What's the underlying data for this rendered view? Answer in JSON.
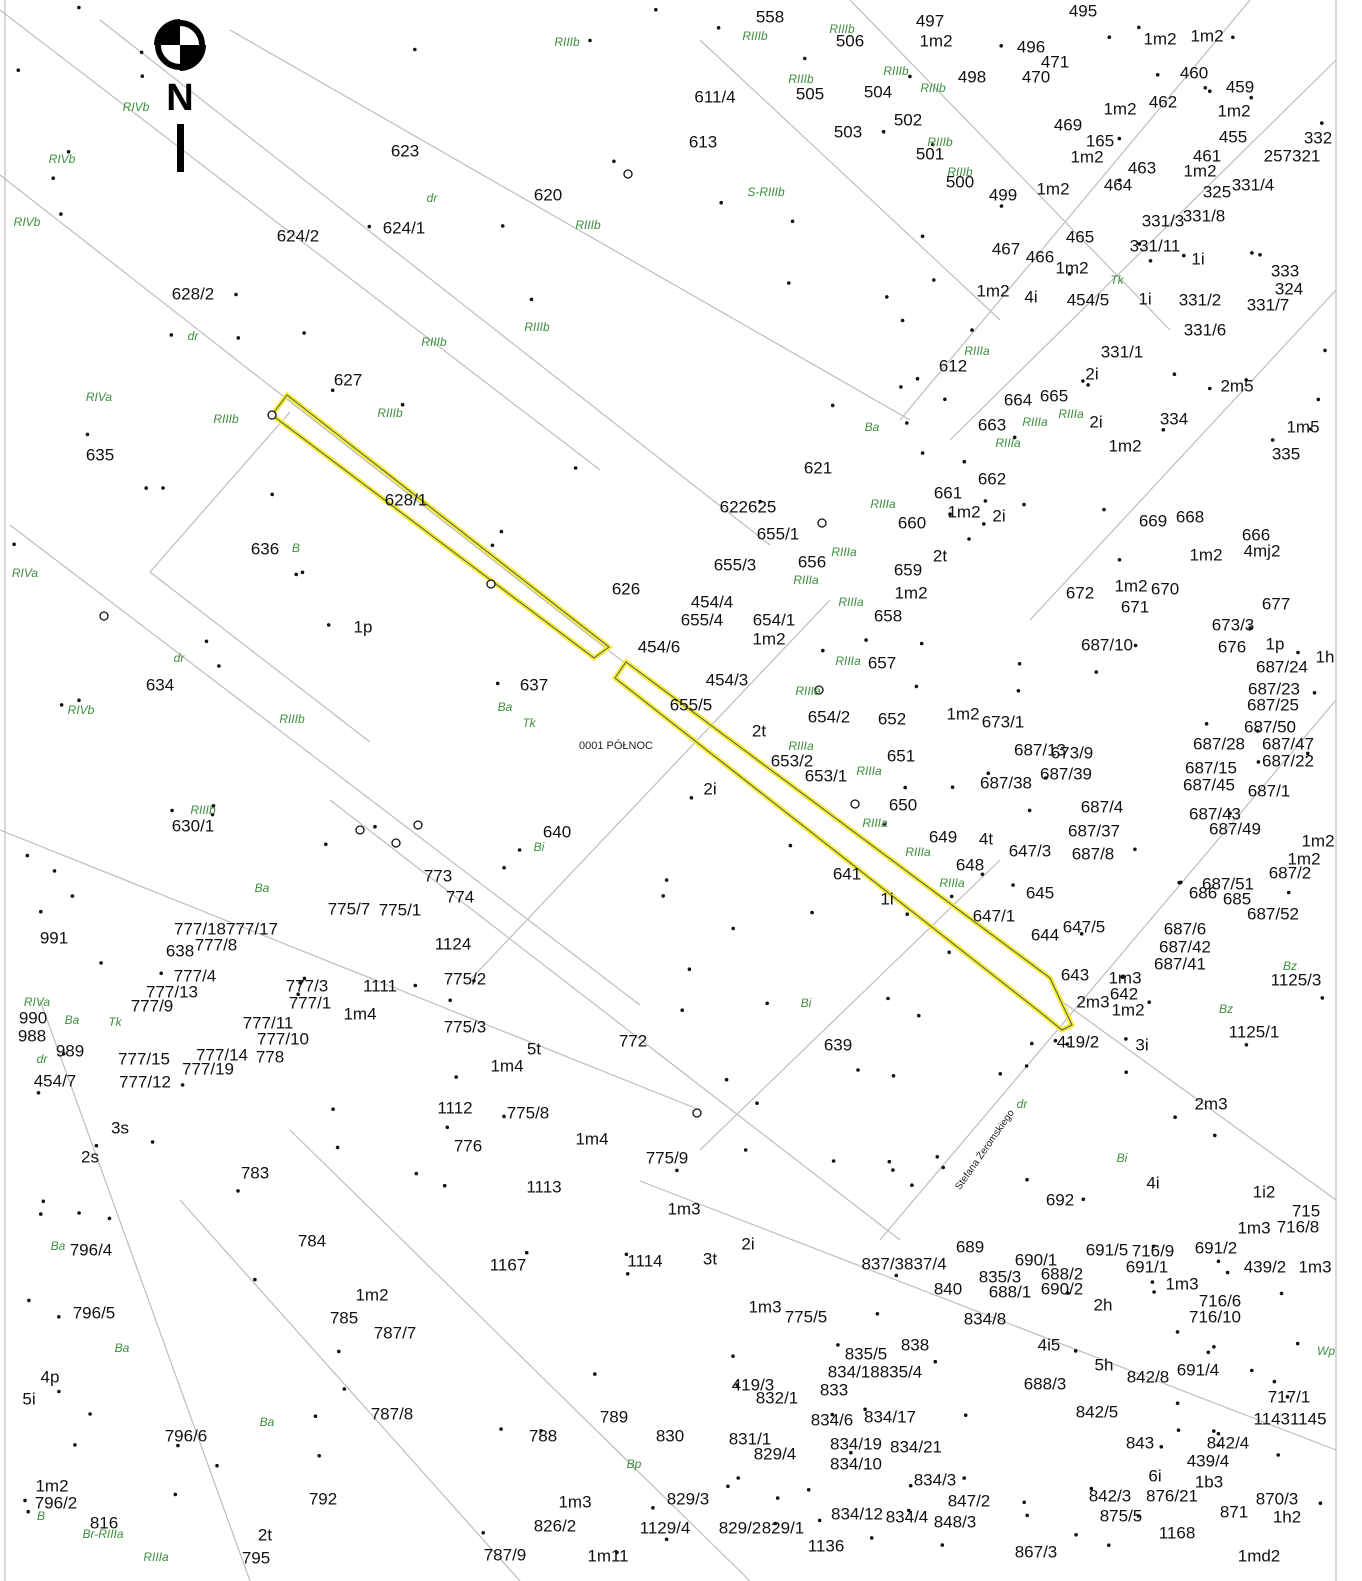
{
  "north": "N",
  "precinct": "0001 PÓŁNOC",
  "street": "Stefana Żeromskiego",
  "parcel_numbers": [
    "558",
    "506",
    "497",
    "1m2",
    "495",
    "496",
    "471",
    "1m2",
    "1m2",
    "611/4",
    "505",
    "504",
    "498",
    "470",
    "460",
    "459",
    "613",
    "503",
    "502",
    "501",
    "469",
    "165",
    "1m2",
    "462",
    "1m2",
    "1m2",
    "455",
    "332",
    "257321",
    "461",
    "1m2",
    "623",
    "620",
    "500",
    "499",
    "1m2",
    "464",
    "463",
    "325",
    "331/4",
    "624/2",
    "624/1",
    "331/8",
    "331/3",
    "331/11",
    "467",
    "466",
    "465",
    "1m2",
    "1i",
    "333",
    "324",
    "628/2",
    "1m2",
    "4i",
    "454/5",
    "1i",
    "331/2",
    "331/7",
    "331/6",
    "331/1",
    "612",
    "2i",
    "2m5",
    "627",
    "664",
    "665",
    "334",
    "635",
    "663",
    "2i",
    "1m2",
    "1m5",
    "335",
    "628/1",
    "621",
    "662",
    "661",
    "1m2",
    "2i",
    "622625",
    "655/1",
    "660",
    "669",
    "668",
    "666",
    "4mj2",
    "1m2",
    "636",
    "655/3",
    "656",
    "659",
    "2t",
    "626",
    "1m2",
    "672",
    "1m2",
    "670",
    "671",
    "677",
    "454/4",
    "655/4",
    "654/1",
    "1m2",
    "658",
    "1p",
    "673/3",
    "676",
    "1p",
    "454/6",
    "657",
    "687/10",
    "1h",
    "687/24",
    "687/23",
    "687/25",
    "634",
    "637",
    "454/3",
    "655/5",
    "654/2",
    "652",
    "1m2",
    "673/1",
    "687/50",
    "687/28",
    "687/47",
    "687/22",
    "2t",
    "653/2",
    "651",
    "687/13",
    "673/9",
    "687/15",
    "687/45",
    "687/1",
    "653/1",
    "687/38",
    "687/39",
    "2i",
    "650",
    "687/4",
    "687/43",
    "687/49",
    "630/1",
    "640",
    "649",
    "4t",
    "687/37",
    "1m2",
    "647/3",
    "687/8",
    "1m2",
    "687/2",
    "648",
    "641",
    "687/51",
    "686",
    "685",
    "1i",
    "647/1",
    "687/52",
    "645",
    "644",
    "647/5",
    "687/6",
    "687/42",
    "687/41",
    "991",
    "777/18777/17",
    "638",
    "777/8",
    "775/7",
    "775/1",
    "773",
    "774",
    "643",
    "1m3",
    "642",
    "1m2",
    "2m3",
    "1125/3",
    "1125/1",
    "990",
    "988",
    "989",
    "454/7",
    "639",
    "419/2",
    "3i",
    "772",
    "777/15",
    "777/12",
    "777/4",
    "777/13",
    "777/9",
    "777/3",
    "777/1",
    "777/11",
    "777/10",
    "778",
    "777/14",
    "777/19",
    "1m4",
    "1111",
    "775/2",
    "775/3",
    "1124",
    "5t",
    "1m4",
    "3s",
    "2s",
    "1112",
    "775/8",
    "2m3",
    "1m4",
    "775/9",
    "776",
    "783",
    "1113",
    "692",
    "4i",
    "1i2",
    "715",
    "1m3",
    "716/8",
    "1m3",
    "3t",
    "2i",
    "1114",
    "1167",
    "796/4",
    "784",
    "689",
    "690/1",
    "691/5",
    "716/9",
    "691/2",
    "1m2",
    "796/5",
    "785",
    "787/7",
    "775/5",
    "1m3",
    "2h",
    "1m3",
    "439/2",
    "1m3",
    "4p",
    "5i",
    "796/6",
    "787/8",
    "789",
    "830",
    "788",
    "5h",
    "4i5",
    "842/8",
    "717/1",
    "11431145",
    "1m2",
    "796/2",
    "816",
    "792",
    "829/3",
    "1129/4",
    "829/2",
    "829/1",
    "1136",
    "870/3",
    "1h2",
    "871",
    "1m3",
    "826/2",
    "1m11",
    "787/9",
    "795",
    "2t",
    "1168",
    "1md2",
    "867/3",
    "1b3",
    "6i",
    "837/3837/4",
    "840",
    "835/3",
    "688/1",
    "688/2",
    "690/2",
    "834/8",
    "838",
    "835/5",
    "834/18835/4",
    "833",
    "832/1",
    "419/3",
    "831/1",
    "829/4",
    "834/6",
    "834/17",
    "834/19",
    "834/21",
    "834/10",
    "834/3",
    "847/2",
    "848/3",
    "834/12",
    "834/4",
    "842/5",
    "843",
    "842/4",
    "842/3",
    "876/21",
    "875/5",
    "439/4",
    "688/3",
    "691/1",
    "716/6",
    "716/10",
    "691/4"
  ],
  "land_classes": [
    "RIIIb",
    "RIIIb",
    "RIIIb",
    "RIIIb",
    "RIIIb",
    "RIIIb",
    "RIVb",
    "RIVb",
    "RIVb",
    "S-RIIIb",
    "RIIIb",
    "RIIIb",
    "RIIIb",
    "RIVa",
    "RIIIb",
    "RIIIb",
    "B",
    "RIVa",
    "RIVb",
    "RIIIb",
    "RIIIb",
    "Ba",
    "Tk",
    "Ba",
    "Bi",
    "Ba",
    "Bi",
    "Bz",
    "Bi",
    "Ba",
    "Ba",
    "Ba",
    "Br-RIIIa",
    "RIIIa",
    "dr",
    "dr",
    "dr",
    "RIIIa",
    "RIIIa",
    "RIIIa",
    "RIIIa",
    "RIIIa",
    "RIIIa",
    "RIIIa",
    "RIIIa",
    "RIIIa",
    "RIIIa",
    "RIIIa",
    "RIIIa",
    "RIIIa",
    "RIIIb",
    "RIIIb",
    "dr",
    "Tk",
    "RIIIa",
    "RIIIa",
    "Bz",
    "RIVa",
    "Ba",
    "Tk",
    "dr",
    "B",
    "Bp",
    "Wp"
  ]
}
